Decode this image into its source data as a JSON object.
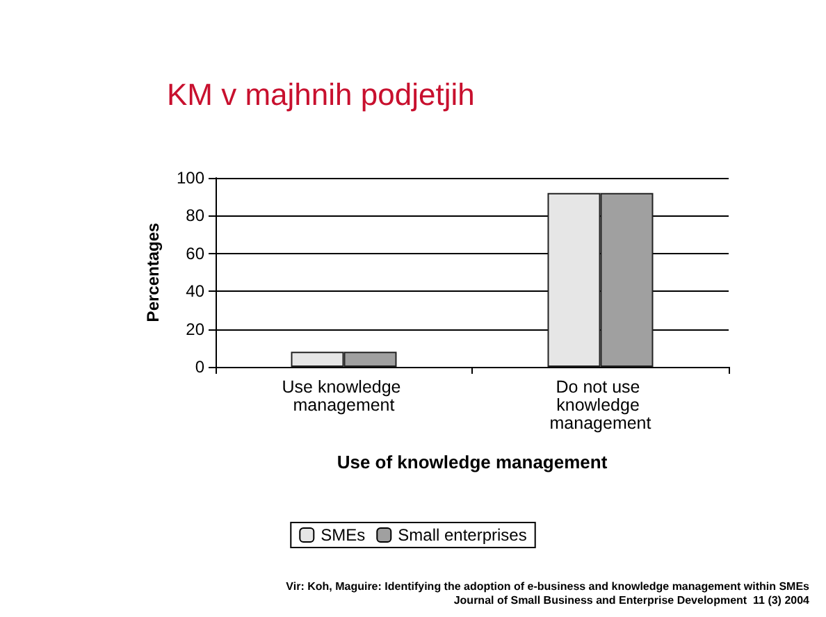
{
  "chart_data": {
    "type": "bar",
    "title": "KM v majhnih podjetjih",
    "xlabel": "Use of knowledge management",
    "ylabel": "Percentages",
    "categories": [
      "Use knowledge management",
      "Do not use knowledge management"
    ],
    "series": [
      {
        "name": "SMEs",
        "color": "#e6e6e6",
        "values": [
          8,
          92
        ]
      },
      {
        "name": "Small enterprises",
        "color": "#a0a0a0",
        "values": [
          8,
          92
        ]
      }
    ],
    "ylim": [
      0,
      100
    ],
    "yticks": [
      0,
      20,
      40,
      60,
      80,
      100
    ],
    "grid": "y",
    "legend": "bottom",
    "annotations": [
      "Vir: Koh, Maguire: Identifying the adoption of e-business and knowledge management within SMEs",
      "Journal of Small Business and Enterprise Development  11 (3) 2004"
    ]
  }
}
